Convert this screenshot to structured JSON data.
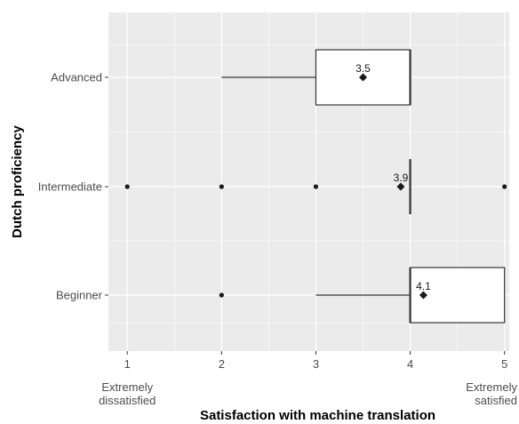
{
  "chart_data": {
    "type": "boxplot",
    "orientation": "horizontal",
    "title": "",
    "xlabel": "Satisfaction with machine translation",
    "ylabel": "Dutch proficiency",
    "xlim": [
      0.8,
      5.05
    ],
    "x_ticks": [
      {
        "value": 1,
        "label": "1",
        "sublabel": [
          "Extremely",
          "dissatisfied"
        ]
      },
      {
        "value": 2,
        "label": "2",
        "sublabel": []
      },
      {
        "value": 3,
        "label": "3",
        "sublabel": []
      },
      {
        "value": 4,
        "label": "4",
        "sublabel": []
      },
      {
        "value": 5,
        "label": "5",
        "sublabel": [
          "Extremely",
          "satisfied"
        ]
      }
    ],
    "categories": [
      "Advanced",
      "Intermediate",
      "Beginner"
    ],
    "boxes": [
      {
        "category": "Advanced",
        "whisker_low": 2,
        "q1": 3,
        "median": 4,
        "q3": 4,
        "whisker_high": 4,
        "mean": 3.5,
        "mean_label": "3.5",
        "outliers": []
      },
      {
        "category": "Intermediate",
        "whisker_low": 4,
        "q1": 4,
        "median": 4,
        "q3": 4,
        "whisker_high": 4,
        "mean": 3.9,
        "mean_label": "3.9",
        "outliers": [
          1,
          2,
          3,
          5
        ]
      },
      {
        "category": "Beginner",
        "whisker_low": 3,
        "q1": 4,
        "median": 4,
        "q3": 5,
        "whisker_high": 5,
        "mean": 4.14,
        "mean_label": "4.1",
        "outliers": [
          2
        ]
      }
    ],
    "grid": true,
    "colors": {
      "panel": "#ebebeb",
      "grid": "#ffffff",
      "box_fill": "#ffffff",
      "stroke": "#333333",
      "point": "#1a1a1a"
    }
  }
}
